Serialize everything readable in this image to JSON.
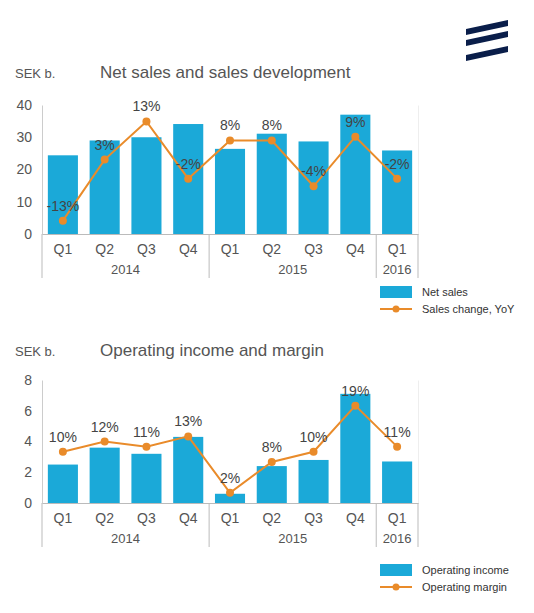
{
  "chart_data": [
    {
      "type": "bar",
      "title": "Net sales and sales development",
      "y_label": "SEK b.",
      "categories": [
        "Q1",
        "Q2",
        "Q3",
        "Q4",
        "Q1",
        "Q2",
        "Q3",
        "Q4",
        "Q1"
      ],
      "groups": [
        {
          "label": "2014",
          "size": 4
        },
        {
          "label": "2015",
          "size": 4
        },
        {
          "label": "2016",
          "size": 1
        }
      ],
      "series": [
        {
          "name": "Net sales",
          "type": "bar",
          "color": "#1ba9d8",
          "values": [
            24.4,
            29.0,
            30.0,
            34.1,
            26.4,
            31.1,
            28.7,
            37.0,
            25.9
          ]
        },
        {
          "name": "Sales change, YoY",
          "type": "line",
          "color": "#e98b2a",
          "marker": "circle",
          "line_style": "solid",
          "axis": "y2",
          "data_labels": true,
          "values": [
            -13,
            3,
            13,
            -2,
            8,
            8,
            -4,
            9,
            -2
          ],
          "value_labels": [
            "-13%",
            "3%",
            "13%",
            "-2%",
            "8%",
            "8%",
            "-4%",
            "9%",
            "-2%"
          ]
        }
      ],
      "ylim": [
        0,
        40
      ],
      "yticks": [
        0,
        10,
        20,
        30,
        40
      ],
      "y2lim": [
        -16.5,
        17.3
      ],
      "y2ticks": [],
      "grid": false,
      "legend": "bottom-right"
    },
    {
      "type": "bar",
      "title": "Operating income and margin",
      "y_label": "SEK b.",
      "categories": [
        "Q1",
        "Q2",
        "Q3",
        "Q4",
        "Q1",
        "Q2",
        "Q3",
        "Q4",
        "Q1"
      ],
      "groups": [
        {
          "label": "2014",
          "size": 4
        },
        {
          "label": "2015",
          "size": 4
        },
        {
          "label": "2016",
          "size": 1
        }
      ],
      "series": [
        {
          "name": "Operating income",
          "type": "bar",
          "color": "#1ba9d8",
          "values": [
            2.5,
            3.6,
            3.2,
            4.3,
            0.6,
            2.4,
            2.8,
            7.1,
            2.7
          ]
        },
        {
          "name": "Operating margin",
          "type": "line",
          "color": "#e98b2a",
          "marker": "circle",
          "line_style": "solid",
          "axis": "y2",
          "data_labels": true,
          "values": [
            10,
            12,
            11,
            13,
            2,
            8,
            10,
            19,
            11
          ],
          "value_labels": [
            "10%",
            "12%",
            "11%",
            "13%",
            "2%",
            "8%",
            "10%",
            "19%",
            "11%"
          ]
        }
      ],
      "ylim": [
        0,
        8
      ],
      "yticks": [
        0,
        2,
        4,
        6,
        8
      ],
      "y2lim": [
        0,
        24
      ],
      "y2ticks": [],
      "grid": false,
      "legend": "bottom-right"
    }
  ]
}
